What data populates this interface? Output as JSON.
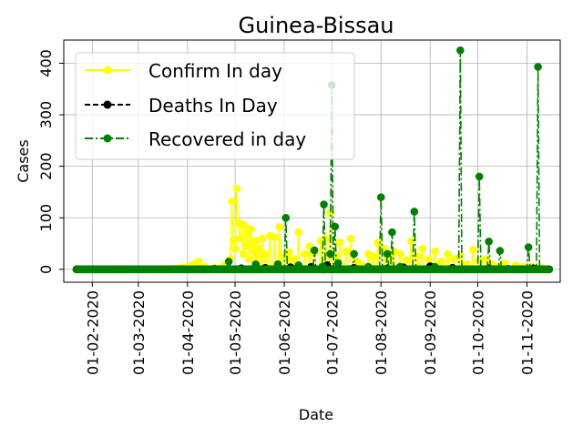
{
  "chart_data": {
    "type": "line",
    "title": "Guinea-Bissau",
    "xlabel": "Date",
    "ylabel": "Cases",
    "x_start": "2020-01-22",
    "x_end": "2020-11-15",
    "xlim": [
      "2020-01-14",
      "2020-11-22"
    ],
    "ylim": [
      -25,
      445
    ],
    "grid": true,
    "legend_position": "upper-left",
    "x_ticks": [
      "01-02-2020",
      "01-03-2020",
      "01-04-2020",
      "01-05-2020",
      "01-06-2020",
      "01-07-2020",
      "01-08-2020",
      "01-09-2020",
      "01-10-2020",
      "01-11-2020"
    ],
    "y_ticks": [
      0,
      100,
      200,
      300,
      400
    ],
    "series": [
      {
        "name": "Confirm In day",
        "color": "#ffff00",
        "style": "solid",
        "markers": true,
        "spikes": [
          [
            "2020-03-25",
            2
          ],
          [
            "2020-03-29",
            4
          ],
          [
            "2020-04-02",
            6
          ],
          [
            "2020-04-05",
            10
          ],
          [
            "2020-04-08",
            15
          ],
          [
            "2020-04-12",
            5
          ],
          [
            "2020-04-18",
            3
          ],
          [
            "2020-04-24",
            8
          ],
          [
            "2020-04-28",
            20
          ],
          [
            "2020-04-29",
            132
          ],
          [
            "2020-04-30",
            55
          ],
          [
            "2020-05-01",
            40
          ],
          [
            "2020-05-02",
            157
          ],
          [
            "2020-05-03",
            90
          ],
          [
            "2020-05-04",
            60
          ],
          [
            "2020-05-05",
            88
          ],
          [
            "2020-05-06",
            30
          ],
          [
            "2020-05-07",
            85
          ],
          [
            "2020-05-08",
            45
          ],
          [
            "2020-05-09",
            70
          ],
          [
            "2020-05-10",
            20
          ],
          [
            "2020-05-11",
            78
          ],
          [
            "2020-05-12",
            50
          ],
          [
            "2020-05-13",
            35
          ],
          [
            "2020-05-14",
            55
          ],
          [
            "2020-05-15",
            25
          ],
          [
            "2020-05-16",
            40
          ],
          [
            "2020-05-18",
            60
          ],
          [
            "2020-05-20",
            30
          ],
          [
            "2020-05-23",
            65
          ],
          [
            "2020-05-26",
            62
          ],
          [
            "2020-05-29",
            82
          ],
          [
            "2020-06-01",
            25
          ],
          [
            "2020-06-04",
            33
          ],
          [
            "2020-06-07",
            20
          ],
          [
            "2020-06-10",
            72
          ],
          [
            "2020-06-14",
            30
          ],
          [
            "2020-06-17",
            45
          ],
          [
            "2020-06-20",
            32
          ],
          [
            "2020-06-24",
            55
          ],
          [
            "2020-06-27",
            60
          ],
          [
            "2020-06-30",
            110
          ],
          [
            "2020-07-03",
            25
          ],
          [
            "2020-07-06",
            52
          ],
          [
            "2020-07-10",
            35
          ],
          [
            "2020-07-13",
            60
          ],
          [
            "2020-07-17",
            15
          ],
          [
            "2020-07-20",
            8
          ],
          [
            "2020-07-24",
            30
          ],
          [
            "2020-07-27",
            25
          ],
          [
            "2020-07-30",
            52
          ],
          [
            "2020-08-03",
            40
          ],
          [
            "2020-08-06",
            22
          ],
          [
            "2020-08-09",
            35
          ],
          [
            "2020-08-13",
            30
          ],
          [
            "2020-08-17",
            18
          ],
          [
            "2020-08-20",
            55
          ],
          [
            "2020-08-24",
            25
          ],
          [
            "2020-08-27",
            40
          ],
          [
            "2020-08-31",
            20
          ],
          [
            "2020-09-04",
            35
          ],
          [
            "2020-09-08",
            15
          ],
          [
            "2020-09-12",
            30
          ],
          [
            "2020-09-16",
            20
          ],
          [
            "2020-09-20",
            25
          ],
          [
            "2020-09-24",
            10
          ],
          [
            "2020-09-28",
            38
          ],
          [
            "2020-10-02",
            15
          ],
          [
            "2020-10-06",
            20
          ],
          [
            "2020-10-10",
            10
          ],
          [
            "2020-10-14",
            5
          ],
          [
            "2020-10-18",
            12
          ],
          [
            "2020-10-25",
            8
          ],
          [
            "2020-10-30",
            5
          ],
          [
            "2020-11-04",
            6
          ],
          [
            "2020-11-10",
            3
          ]
        ]
      },
      {
        "name": "Deaths In Day",
        "color": "#000000",
        "style": "dashed",
        "markers": true,
        "spikes": [
          [
            "2020-04-18",
            1
          ],
          [
            "2020-05-05",
            2
          ],
          [
            "2020-05-20",
            3
          ],
          [
            "2020-06-05",
            4
          ],
          [
            "2020-06-18",
            5
          ],
          [
            "2020-06-28",
            8
          ],
          [
            "2020-07-15",
            3
          ],
          [
            "2020-08-05",
            2
          ],
          [
            "2020-08-15",
            4
          ],
          [
            "2020-09-01",
            6
          ],
          [
            "2020-09-15",
            3
          ],
          [
            "2020-10-08",
            2
          ],
          [
            "2020-10-20",
            1
          ],
          [
            "2020-11-05",
            2
          ]
        ]
      },
      {
        "name": "Recovered in day",
        "color": "#008000",
        "style": "dashdot",
        "markers": true,
        "spikes": [
          [
            "2020-04-27",
            15
          ],
          [
            "2020-05-14",
            10
          ],
          [
            "2020-05-28",
            10
          ],
          [
            "2020-06-02",
            100
          ],
          [
            "2020-06-10",
            8
          ],
          [
            "2020-06-20",
            37
          ],
          [
            "2020-06-25",
            5
          ],
          [
            "2020-06-26",
            126
          ],
          [
            "2020-06-30",
            30
          ],
          [
            "2020-07-01",
            358
          ],
          [
            "2020-07-03",
            83
          ],
          [
            "2020-07-05",
            12
          ],
          [
            "2020-07-15",
            30
          ],
          [
            "2020-07-24",
            5
          ],
          [
            "2020-08-01",
            140
          ],
          [
            "2020-08-05",
            30
          ],
          [
            "2020-08-08",
            72
          ],
          [
            "2020-08-13",
            5
          ],
          [
            "2020-08-22",
            112
          ],
          [
            "2020-09-04",
            5
          ],
          [
            "2020-09-20",
            425
          ],
          [
            "2020-10-02",
            180
          ],
          [
            "2020-10-08",
            54
          ],
          [
            "2020-10-15",
            36
          ],
          [
            "2020-11-02",
            43
          ],
          [
            "2020-11-08",
            393
          ]
        ]
      }
    ]
  }
}
